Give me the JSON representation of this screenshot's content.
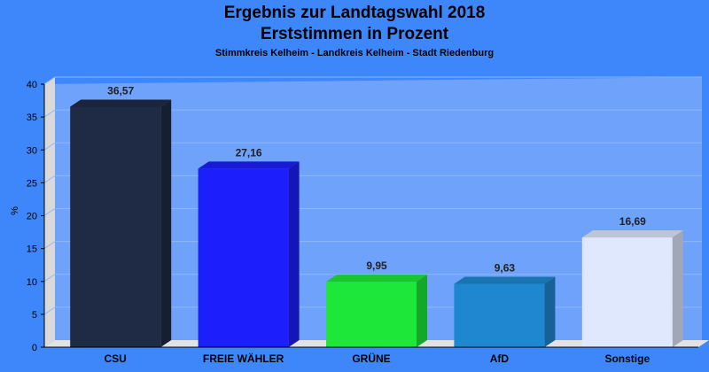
{
  "chart_data": {
    "type": "bar",
    "title": "Ergebnis zur Landtagswahl 2018",
    "subtitle": "Erststimmen in Prozent",
    "subtitle2": "Stimmkreis Kelheim - Landkreis Kelheim - Stadt Riedenburg",
    "ylabel": "%",
    "ylim": [
      0,
      40
    ],
    "yticks": [
      "0",
      "5",
      "10",
      "15",
      "20",
      "25",
      "30",
      "35",
      "40"
    ],
    "categories": [
      "CSU",
      "FREIE WÄHLER",
      "GRÜNE",
      "AfD",
      "Sonstige"
    ],
    "values": [
      36.57,
      27.16,
      9.95,
      9.63,
      16.69
    ],
    "value_labels": [
      "36,57",
      "27,16",
      "9,95",
      "9,63",
      "16,69"
    ],
    "colors": [
      "#1f2a44",
      "#1c1ffb",
      "#1de83a",
      "#1f87d0",
      "#dfe8fd"
    ],
    "grid": true,
    "legend": "none"
  }
}
